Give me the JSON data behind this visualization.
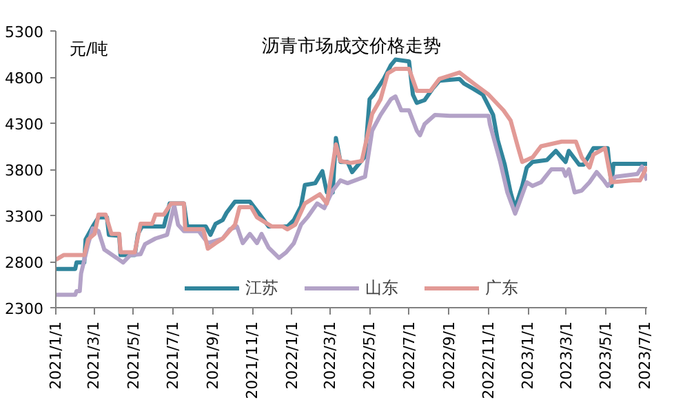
{
  "chart_data": {
    "type": "line",
    "title": "沥青市场成交价格走势",
    "ylabel": "元/吨",
    "xlim": [
      "2021-01-01",
      "2023-07-04"
    ],
    "xticks": [
      {
        "value": "2021-01-01",
        "label": "2021/1/1"
      },
      {
        "value": "2021-03-01",
        "label": "2021/3/1"
      },
      {
        "value": "2021-05-01",
        "label": "2021/5/1"
      },
      {
        "value": "2021-07-01",
        "label": "2021/7/1"
      },
      {
        "value": "2021-09-01",
        "label": "2021/9/1"
      },
      {
        "value": "2021-11-01",
        "label": "2021/11/1"
      },
      {
        "value": "2022-01-01",
        "label": "2022/1/1"
      },
      {
        "value": "2022-03-01",
        "label": "2022/3/1"
      },
      {
        "value": "2022-05-01",
        "label": "2022/5/1"
      },
      {
        "value": "2022-07-01",
        "label": "2022/7/1"
      },
      {
        "value": "2022-09-01",
        "label": "2022/9/1"
      },
      {
        "value": "2022-11-01",
        "label": "2022/11/1"
      },
      {
        "value": "2023-01-01",
        "label": "2023/1/1"
      },
      {
        "value": "2023-03-01",
        "label": "2023/3/1"
      },
      {
        "value": "2023-05-01",
        "label": "2023/5/1"
      },
      {
        "value": "2023-07-01",
        "label": "2023/7/1"
      }
    ],
    "ylim": [
      2300,
      5300
    ],
    "yticks": [
      2300,
      2800,
      3300,
      3800,
      4300,
      4800,
      5300
    ],
    "grid": false,
    "legend": "bottom",
    "marker": "none",
    "line_style": "solid",
    "series": [
      {
        "name": "江苏",
        "color": "#31859c",
        "x": [
          "2021-01-01",
          "2021-01-31",
          "2021-02-02",
          "2021-02-14",
          "2021-02-16",
          "2021-02-27",
          "2021-03-08",
          "2021-03-21",
          "2021-03-24",
          "2021-04-09",
          "2021-04-11",
          "2021-05-03",
          "2021-05-08",
          "2021-05-14",
          "2021-06-17",
          "2021-06-26",
          "2021-07-18",
          "2021-07-23",
          "2021-08-21",
          "2021-08-28",
          "2021-09-05",
          "2021-09-16",
          "2021-09-22",
          "2021-10-05",
          "2021-10-28",
          "2021-11-08",
          "2021-11-26",
          "2021-12-25",
          "2022-01-04",
          "2022-01-15",
          "2022-01-21",
          "2022-02-06",
          "2022-02-17",
          "2022-02-24",
          "2022-03-05",
          "2022-03-10",
          "2022-03-17",
          "2022-03-28",
          "2022-04-04",
          "2022-04-24",
          "2022-05-01",
          "2022-05-07",
          "2022-05-23",
          "2022-06-03",
          "2022-06-10",
          "2022-07-01",
          "2022-07-07",
          "2022-07-13",
          "2022-07-25",
          "2022-08-06",
          "2022-08-17",
          "2022-09-17",
          "2022-09-24",
          "2022-10-09",
          "2022-10-23",
          "2022-11-08",
          "2022-11-15",
          "2022-11-26",
          "2022-12-05",
          "2022-12-12",
          "2022-12-23",
          "2022-12-30",
          "2023-01-08",
          "2023-01-30",
          "2023-02-13",
          "2023-02-28",
          "2023-03-05",
          "2023-03-21",
          "2023-03-28",
          "2023-04-12",
          "2023-05-04",
          "2023-05-10",
          "2023-05-13",
          "2023-07-04"
        ],
        "values": [
          2720,
          2720,
          2790,
          2790,
          3040,
          3180,
          3280,
          3280,
          3090,
          3080,
          2870,
          2870,
          3100,
          3180,
          3180,
          3430,
          3430,
          3180,
          3180,
          3090,
          3210,
          3250,
          3330,
          3450,
          3450,
          3350,
          3180,
          3180,
          3250,
          3400,
          3630,
          3650,
          3780,
          3550,
          3550,
          4140,
          3880,
          3880,
          3770,
          3940,
          4560,
          4610,
          4780,
          4930,
          4990,
          4970,
          4610,
          4520,
          4550,
          4670,
          4760,
          4780,
          4730,
          4670,
          4610,
          4390,
          4120,
          3850,
          3550,
          3380,
          3620,
          3820,
          3880,
          3900,
          4000,
          3880,
          4000,
          3850,
          3850,
          4030,
          4030,
          3620,
          3860,
          3860
        ]
      },
      {
        "name": "山东",
        "color": "#b3a2c7",
        "x": [
          "2021-01-01",
          "2021-01-13",
          "2021-01-31",
          "2021-02-02",
          "2021-02-07",
          "2021-02-09",
          "2021-02-20",
          "2021-02-27",
          "2021-03-08",
          "2021-03-17",
          "2021-04-05",
          "2021-04-15",
          "2021-04-26",
          "2021-05-12",
          "2021-05-19",
          "2021-06-04",
          "2021-06-22",
          "2021-07-03",
          "2021-07-09",
          "2021-07-18",
          "2021-08-10",
          "2021-08-24",
          "2021-09-16",
          "2021-09-27",
          "2021-10-08",
          "2021-10-17",
          "2021-10-28",
          "2021-11-08",
          "2021-11-15",
          "2021-11-26",
          "2021-12-12",
          "2021-12-23",
          "2022-01-04",
          "2022-01-15",
          "2022-01-26",
          "2022-02-09",
          "2022-02-20",
          "2022-02-28",
          "2022-03-05",
          "2022-03-17",
          "2022-03-28",
          "2022-04-24",
          "2022-05-05",
          "2022-05-18",
          "2022-06-03",
          "2022-06-10",
          "2022-06-19",
          "2022-07-01",
          "2022-07-13",
          "2022-07-18",
          "2022-07-25",
          "2022-08-10",
          "2022-09-02",
          "2022-11-01",
          "2022-11-03",
          "2022-11-19",
          "2022-11-30",
          "2022-12-12",
          "2022-12-18",
          "2022-12-30",
          "2023-01-08",
          "2023-01-21",
          "2023-02-06",
          "2023-02-24",
          "2023-02-28",
          "2023-03-05",
          "2023-03-14",
          "2023-03-25",
          "2023-04-06",
          "2023-04-17",
          "2023-04-28",
          "2023-05-04",
          "2023-05-16",
          "2023-06-19",
          "2023-06-26",
          "2023-07-04"
        ],
        "values": [
          2440,
          2440,
          2440,
          2480,
          2480,
          2670,
          2990,
          3160,
          3130,
          2930,
          2840,
          2790,
          2870,
          2880,
          2990,
          3050,
          3090,
          3410,
          3200,
          3130,
          3130,
          3000,
          3050,
          3150,
          3180,
          3000,
          3100,
          3000,
          3100,
          2950,
          2840,
          2900,
          3000,
          3200,
          3290,
          3430,
          3380,
          3500,
          3570,
          3680,
          3650,
          3720,
          4220,
          4390,
          4560,
          4590,
          4440,
          4440,
          4220,
          4170,
          4290,
          4390,
          4380,
          4380,
          4290,
          3880,
          3550,
          3320,
          3430,
          3660,
          3620,
          3660,
          3800,
          3800,
          3730,
          3800,
          3550,
          3570,
          3660,
          3770,
          3680,
          3620,
          3720,
          3750,
          3830,
          3680
        ]
      },
      {
        "name": "广东",
        "color": "#e29a96",
        "x": [
          "2021-01-01",
          "2021-01-13",
          "2021-02-14",
          "2021-02-20",
          "2021-03-02",
          "2021-03-08",
          "2021-03-19",
          "2021-03-28",
          "2021-04-09",
          "2021-04-11",
          "2021-05-03",
          "2021-05-12",
          "2021-05-30",
          "2021-06-04",
          "2021-06-17",
          "2021-06-28",
          "2021-07-18",
          "2021-07-20",
          "2021-08-17",
          "2021-08-24",
          "2021-09-05",
          "2021-09-16",
          "2021-10-05",
          "2021-10-12",
          "2021-10-30",
          "2021-11-08",
          "2021-12-01",
          "2021-12-18",
          "2021-12-25",
          "2022-01-06",
          "2022-01-21",
          "2022-02-13",
          "2022-02-24",
          "2022-03-10",
          "2022-03-17",
          "2022-04-02",
          "2022-04-19",
          "2022-05-05",
          "2022-05-18",
          "2022-05-29",
          "2022-06-10",
          "2022-07-01",
          "2022-07-13",
          "2022-08-03",
          "2022-08-17",
          "2022-09-17",
          "2022-10-09",
          "2022-11-01",
          "2022-11-24",
          "2022-12-05",
          "2022-12-16",
          "2022-12-23",
          "2023-01-08",
          "2023-01-21",
          "2023-02-22",
          "2023-03-16",
          "2023-03-25",
          "2023-04-06",
          "2023-04-12",
          "2023-04-30",
          "2023-05-04",
          "2023-05-10",
          "2023-06-12",
          "2023-06-23",
          "2023-07-04"
        ],
        "values": [
          2820,
          2870,
          2870,
          3040,
          3100,
          3310,
          3310,
          3100,
          3100,
          2900,
          2900,
          3210,
          3210,
          3310,
          3310,
          3430,
          3430,
          3150,
          3150,
          2940,
          3000,
          3050,
          3200,
          3390,
          3390,
          3280,
          3180,
          3180,
          3150,
          3200,
          3430,
          3530,
          3430,
          4070,
          3890,
          3870,
          3890,
          4400,
          4560,
          4840,
          4890,
          4890,
          4650,
          4650,
          4780,
          4850,
          4730,
          4610,
          4440,
          4330,
          4050,
          3880,
          3930,
          4050,
          4100,
          4100,
          3930,
          3820,
          3960,
          4030,
          3880,
          3660,
          3680,
          3680,
          3830
        ]
      }
    ]
  }
}
